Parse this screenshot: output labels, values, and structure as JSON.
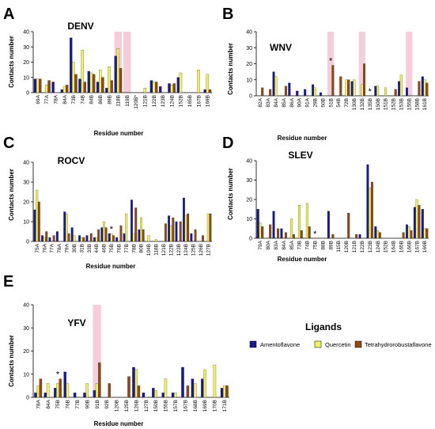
{
  "colors": {
    "Amentoflavone": "#1a1a8c",
    "Quercetin": "#f0f060",
    "Tetrahydrorobustaflavone": "#8b4a1a",
    "highlight": "#f4c2d2"
  },
  "legend": {
    "title": "Ligands",
    "items": [
      "Amentoflavone",
      "Quercetin",
      "Tetrahydrorobustaflavone"
    ]
  },
  "chart_data": [
    {
      "type": "bar",
      "letter": "A",
      "title": "DENV",
      "ylabel": "Contacts number",
      "xlabel": "Residue number",
      "ylim": [
        0,
        40
      ],
      "yticks": [
        0,
        10,
        20,
        30,
        40
      ],
      "categories": [
        "69A",
        "77A",
        "78A",
        "84A",
        "73B",
        "74B",
        "84B",
        "86B",
        "89B",
        "118B",
        "119B",
        "120B*",
        "121B",
        "122B",
        "123B",
        "124B",
        "152B",
        "165B",
        "167B",
        "169B"
      ],
      "series": [
        {
          "name": "Amentoflavone",
          "values": [
            9,
            0,
            7,
            2,
            36,
            9,
            14,
            7,
            3,
            24,
            0,
            0,
            0,
            8,
            4,
            6,
            10,
            0,
            0,
            2
          ]
        },
        {
          "name": "Quercetin",
          "values": [
            9,
            5,
            0,
            4,
            20,
            28,
            13,
            15,
            17,
            29,
            0,
            0,
            3,
            7,
            0,
            5,
            13,
            0,
            15,
            12
          ]
        },
        {
          "name": "Tetrahydrorobustaflavone",
          "values": [
            9,
            8,
            0,
            5,
            12,
            7,
            12,
            10,
            8,
            16,
            0,
            0,
            0,
            7,
            0,
            6,
            0,
            0,
            0,
            2
          ]
        }
      ],
      "highlights": [
        9,
        10
      ],
      "stars": []
    },
    {
      "type": "bar",
      "letter": "B",
      "title": "WNV",
      "ylabel": "Contacts number",
      "xlabel": "Residue number",
      "ylim": [
        0,
        40
      ],
      "yticks": [
        0,
        10,
        20,
        30,
        40
      ],
      "categories": [
        "82A",
        "83A",
        "84A",
        "85A",
        "86A",
        "90A",
        "91A",
        "29B",
        "50B",
        "51B",
        "54B",
        "72B",
        "130B",
        "132B",
        "135B",
        "150B",
        "151B",
        "152B",
        "153B",
        "155B",
        "158B",
        "161B"
      ],
      "series": [
        {
          "name": "Amentoflavone",
          "values": [
            0,
            0,
            15,
            0,
            8,
            3,
            4,
            7,
            2,
            0,
            0,
            0,
            9,
            0,
            0,
            6,
            0,
            0,
            9,
            5,
            0,
            12
          ]
        },
        {
          "name": "Quercetin",
          "values": [
            0,
            0,
            12,
            0,
            0,
            0,
            0,
            5,
            0,
            0,
            0,
            10,
            10,
            7,
            0,
            6,
            5,
            0,
            13,
            0,
            0,
            10
          ]
        },
        {
          "name": "Tetrahydrorobustaflavone",
          "values": [
            5,
            4,
            0,
            6,
            0,
            0,
            0,
            0,
            0,
            19,
            12,
            10,
            0,
            20,
            0,
            0,
            0,
            4,
            0,
            0,
            9,
            8
          ]
        }
      ],
      "highlights": [
        9,
        13,
        19
      ],
      "stars": [
        9,
        14
      ]
    },
    {
      "type": "bar",
      "letter": "C",
      "title": "ROCV",
      "ylabel": "Contacts number",
      "xlabel": "Residue number",
      "ylim": [
        0,
        40
      ],
      "yticks": [
        0,
        10,
        20,
        30,
        40
      ],
      "categories": [
        "75A",
        "76A",
        "77A",
        "78A",
        "79A",
        "30B",
        "31B",
        "33B",
        "44B",
        "46B",
        "75B",
        "76B",
        "77B",
        "78B",
        "80B",
        "104B",
        "118B",
        "121B",
        "122B",
        "123B",
        "124B",
        "125B",
        "126B",
        "127B"
      ],
      "series": [
        {
          "name": "Amentoflavone",
          "values": [
            16,
            3,
            2,
            5,
            15,
            7,
            3,
            3,
            2,
            7,
            4,
            2,
            4,
            21,
            6,
            0,
            0,
            0,
            13,
            10,
            22,
            4,
            0,
            0
          ]
        },
        {
          "name": "Quercetin",
          "values": [
            26,
            2,
            0,
            0,
            14,
            3,
            2,
            0,
            2,
            10,
            4,
            0,
            14,
            4,
            12,
            3,
            1,
            0,
            8,
            0,
            13,
            0,
            0,
            14
          ]
        },
        {
          "name": "Tetrahydrorobustaflavone",
          "values": [
            20,
            5,
            3,
            0,
            4,
            0,
            2,
            4,
            6,
            7,
            3,
            8,
            0,
            17,
            6,
            0,
            0,
            9,
            12,
            10,
            14,
            6,
            3,
            14
          ]
        }
      ],
      "highlights": [],
      "stars": [
        10
      ]
    },
    {
      "type": "bar",
      "letter": "D",
      "title": "SLEV",
      "ylabel": "Contacts number",
      "xlabel": "Residue number",
      "ylim": [
        0,
        40
      ],
      "yticks": [
        0,
        10,
        20,
        30,
        40
      ],
      "categories": [
        "79A",
        "80A",
        "83A",
        "84A",
        "85A",
        "73B",
        "74B",
        "75B",
        "88B",
        "89B",
        "115B",
        "120B",
        "121B",
        "122B",
        "123B",
        "124B",
        "152B",
        "164B",
        "165B",
        "166B",
        "167B",
        "169B"
      ],
      "series": [
        {
          "name": "Amentoflavone",
          "values": [
            15,
            0,
            14,
            5,
            0,
            0,
            0,
            0,
            0,
            14,
            0,
            0,
            0,
            2,
            38,
            6,
            0,
            0,
            0,
            7,
            16,
            15
          ]
        },
        {
          "name": "Quercetin",
          "values": [
            8,
            0,
            0,
            0,
            10,
            17,
            18,
            0,
            0,
            0,
            0,
            0,
            0,
            0,
            26,
            4,
            0,
            0,
            0,
            6,
            20,
            5
          ]
        },
        {
          "name": "Tetrahydrorobustaflavone",
          "values": [
            6,
            7,
            5,
            3,
            2,
            4,
            6,
            0,
            0,
            2,
            0,
            13,
            2,
            0,
            29,
            3,
            0,
            0,
            3,
            4,
            17,
            5
          ]
        }
      ],
      "highlights": [],
      "stars": [
        7
      ]
    },
    {
      "type": "bar",
      "letter": "E",
      "title": "YFV",
      "ylabel": "Contacts number",
      "xlabel": "Residue number",
      "ylim": [
        0,
        40
      ],
      "yticks": [
        0,
        10,
        20,
        30,
        40
      ],
      "categories": [
        "78A",
        "84A",
        "75B",
        "76B",
        "77B",
        "90B",
        "91B",
        "92B",
        "120B",
        "125B",
        "126B",
        "127B",
        "150B",
        "155B",
        "157B",
        "167B",
        "168B",
        "169B",
        "170B",
        "171B"
      ],
      "series": [
        {
          "name": "Amentoflavone",
          "values": [
            2,
            2,
            4,
            11,
            2,
            2,
            3,
            0,
            0,
            0,
            13,
            2,
            4,
            2,
            2,
            13,
            8,
            8,
            0,
            4
          ]
        },
        {
          "name": "Quercetin",
          "values": [
            5,
            6,
            6,
            6,
            0,
            6,
            6,
            0,
            0,
            0,
            12,
            0,
            3,
            8,
            2,
            0,
            6,
            12,
            14,
            5
          ]
        },
        {
          "name": "Tetrahydrorobustaflavone",
          "values": [
            8,
            0,
            8,
            0,
            0,
            0,
            15,
            6,
            0,
            9,
            5,
            0,
            0,
            0,
            0,
            5,
            0,
            0,
            0,
            5
          ]
        }
      ],
      "highlights": [
        6
      ],
      "stars": [
        2
      ]
    }
  ]
}
